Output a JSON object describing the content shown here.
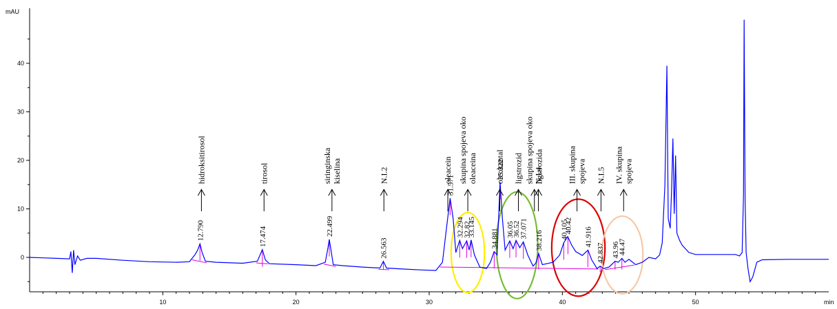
{
  "chart_data": {
    "type": "line",
    "title": "",
    "xlabel": "min",
    "ylabel": "mAU",
    "xlim": [
      0,
      60
    ],
    "ylim": [
      -5,
      50
    ],
    "x_ticks": [
      10,
      20,
      30,
      40,
      50
    ],
    "y_ticks": [
      0,
      10,
      20,
      30,
      40
    ],
    "grid": false,
    "legend": "none",
    "series": [
      {
        "color": "#0000ff",
        "points": [
          [
            0,
            0
          ],
          [
            1,
            -0.1
          ],
          [
            2,
            -0.2
          ],
          [
            3,
            -0.3
          ],
          [
            3.1,
            1.2
          ],
          [
            3.2,
            -3.2
          ],
          [
            3.3,
            1.5
          ],
          [
            3.4,
            -1.5
          ],
          [
            3.6,
            0.3
          ],
          [
            3.8,
            -0.6
          ],
          [
            4.3,
            -0.2
          ],
          [
            5,
            -0.2
          ],
          [
            7,
            -0.6
          ],
          [
            9,
            -0.9
          ],
          [
            11,
            -1.0
          ],
          [
            12,
            -0.9
          ],
          [
            12.4,
            0.5
          ],
          [
            12.6,
            1.4
          ],
          [
            12.79,
            2.8
          ],
          [
            12.95,
            1.0
          ],
          [
            13.2,
            -0.8
          ],
          [
            14,
            -1.0
          ],
          [
            16,
            -1.2
          ],
          [
            17.1,
            -0.8
          ],
          [
            17.3,
            0.5
          ],
          [
            17.47,
            1.6
          ],
          [
            17.7,
            -0.5
          ],
          [
            18,
            -1.3
          ],
          [
            20,
            -1.5
          ],
          [
            21.5,
            -1.7
          ],
          [
            22.2,
            -1.0
          ],
          [
            22.4,
            2.0
          ],
          [
            22.5,
            3.7
          ],
          [
            22.6,
            2.0
          ],
          [
            22.8,
            -1.5
          ],
          [
            23.5,
            -1.7
          ],
          [
            25,
            -2.0
          ],
          [
            26.3,
            -2.2
          ],
          [
            26.56,
            -0.8
          ],
          [
            26.8,
            -2.2
          ],
          [
            28,
            -2.4
          ],
          [
            29.5,
            -2.6
          ],
          [
            30.5,
            -2.7
          ],
          [
            31.0,
            -1.0
          ],
          [
            31.3,
            6.0
          ],
          [
            31.57,
            12.2
          ],
          [
            31.8,
            8.0
          ],
          [
            32.0,
            1.0
          ],
          [
            32.29,
            3.5
          ],
          [
            32.5,
            1.8
          ],
          [
            32.82,
            3.4
          ],
          [
            33.0,
            1.5
          ],
          [
            33.15,
            3.6
          ],
          [
            33.4,
            0.5
          ],
          [
            33.8,
            -2.0
          ],
          [
            34.3,
            -2.3
          ],
          [
            34.6,
            -1.0
          ],
          [
            34.88,
            1.2
          ],
          [
            35.1,
            0.5
          ],
          [
            35.32,
            15.5
          ],
          [
            35.5,
            8.0
          ],
          [
            35.7,
            1.5
          ],
          [
            36.05,
            3.4
          ],
          [
            36.3,
            1.8
          ],
          [
            36.52,
            3.5
          ],
          [
            36.8,
            2.0
          ],
          [
            37.07,
            3.2
          ],
          [
            37.4,
            0.5
          ],
          [
            37.8,
            -1.8
          ],
          [
            38.0,
            -1.2
          ],
          [
            38.22,
            0.8
          ],
          [
            38.5,
            -1.5
          ],
          [
            39.3,
            -1.0
          ],
          [
            39.8,
            0.5
          ],
          [
            40.1,
            3.0
          ],
          [
            40.4,
            4.3
          ],
          [
            40.7,
            2.5
          ],
          [
            41.0,
            1.2
          ],
          [
            41.5,
            0.4
          ],
          [
            41.92,
            1.5
          ],
          [
            42.2,
            -0.5
          ],
          [
            42.6,
            -2.3
          ],
          [
            42.84,
            -1.8
          ],
          [
            43.1,
            -2.3
          ],
          [
            43.5,
            -2.0
          ],
          [
            43.96,
            -0.8
          ],
          [
            44.2,
            -1.0
          ],
          [
            44.47,
            -0.2
          ],
          [
            44.7,
            -1.0
          ],
          [
            45.0,
            -0.4
          ],
          [
            45.5,
            -1.5
          ],
          [
            46.0,
            -1.0
          ],
          [
            46.5,
            0
          ],
          [
            47.0,
            -0.3
          ],
          [
            47.3,
            0.5
          ],
          [
            47.5,
            3.0
          ],
          [
            47.7,
            15.0
          ],
          [
            47.85,
            39.5
          ],
          [
            47.95,
            8.0
          ],
          [
            48.1,
            6.0
          ],
          [
            48.2,
            14.0
          ],
          [
            48.3,
            24.5
          ],
          [
            48.4,
            9.0
          ],
          [
            48.5,
            21.0
          ],
          [
            48.6,
            5.0
          ],
          [
            48.8,
            3.5
          ],
          [
            49.0,
            2.5
          ],
          [
            49.5,
            1.0
          ],
          [
            50,
            0.6
          ],
          [
            51,
            0.6
          ],
          [
            52,
            0.6
          ],
          [
            53,
            0.6
          ],
          [
            53.3,
            0.3
          ],
          [
            53.5,
            1.0
          ],
          [
            53.6,
            13.0
          ],
          [
            53.65,
            49.0
          ],
          [
            53.72,
            12.0
          ],
          [
            53.8,
            1.0
          ],
          [
            53.95,
            -2.5
          ],
          [
            54.1,
            -5.0
          ],
          [
            54.3,
            -4.0
          ],
          [
            54.6,
            -1.0
          ],
          [
            55,
            -0.5
          ],
          [
            57,
            -0.4
          ],
          [
            59,
            -0.4
          ],
          [
            60,
            -0.4
          ]
        ]
      }
    ],
    "peaks": [
      {
        "rt": 12.79,
        "label": "12.790"
      },
      {
        "rt": 17.474,
        "label": "17.474"
      },
      {
        "rt": 22.499,
        "label": "22.499"
      },
      {
        "rt": 26.563,
        "label": "26.563"
      },
      {
        "rt": 31.571,
        "label": "31.571"
      },
      {
        "rt": 32.294,
        "label": "32.294"
      },
      {
        "rt": 32.82,
        "label": "32.82"
      },
      {
        "rt": 33.145,
        "label": "33.145"
      },
      {
        "rt": 34.881,
        "label": "34.881"
      },
      {
        "rt": 35.322,
        "label": "35.322"
      },
      {
        "rt": 36.05,
        "label": "36.05"
      },
      {
        "rt": 36.52,
        "label": "36.52"
      },
      {
        "rt": 37.071,
        "label": "37.071"
      },
      {
        "rt": 38.216,
        "label": "38.216"
      },
      {
        "rt": 40.105,
        "label": "40.105"
      },
      {
        "rt": 40.42,
        "label": "40.42"
      },
      {
        "rt": 41.916,
        "label": "41.916"
      },
      {
        "rt": 42.837,
        "label": "42.837"
      },
      {
        "rt": 43.96,
        "label": "43.96"
      },
      {
        "rt": 44.47,
        "label": "44.47"
      }
    ],
    "annotations": [
      {
        "lines": [
          "hidroksitirosol"
        ],
        "x": 12.9
      },
      {
        "lines": [
          "tirosol"
        ],
        "x": 17.6
      },
      {
        "lines": [
          "siringinska",
          "kiselina"
        ],
        "x": 22.7
      },
      {
        "lines": [
          "N.I.2"
        ],
        "x": 26.6
      },
      {
        "lines": [
          "oleacein"
        ],
        "x": 31.4
      },
      {
        "lines": [
          "skupina spojeva oko",
          "oleaceina"
        ],
        "x": 32.9
      },
      {
        "lines": [
          "oleokantal"
        ],
        "x": 35.3
      },
      {
        "lines": [
          "ligstrozid"
        ],
        "x": 36.7
      },
      {
        "lines": [
          "skupina spojeva oko",
          "ligstrozida"
        ],
        "x": 37.9
      },
      {
        "lines": [
          "N.I.4"
        ],
        "x": 38.2
      },
      {
        "lines": [
          "III. skupina",
          "spojeva"
        ],
        "x": 41.1
      },
      {
        "lines": [
          "N.I.5"
        ],
        "x": 42.9
      },
      {
        "lines": [
          "IV. skupina",
          "spojeva"
        ],
        "x": 44.6
      }
    ],
    "highlights": [
      {
        "color": "#ffee00",
        "x": 32.9,
        "w": 2.5,
        "y": 1.0,
        "h": 16.5
      },
      {
        "color": "#77bb33",
        "x": 36.6,
        "w": 3.1,
        "y": 2.5,
        "h": 22.0
      },
      {
        "color": "#dd0000",
        "x": 41.2,
        "w": 4.0,
        "y": 2.0,
        "h": 20.0
      },
      {
        "color": "#f5c8a8",
        "x": 44.5,
        "w": 3.1,
        "y": 0.5,
        "h": 16.0
      }
    ],
    "colors": {
      "trace": "#0000ff",
      "integration": "#dd00dd"
    }
  }
}
